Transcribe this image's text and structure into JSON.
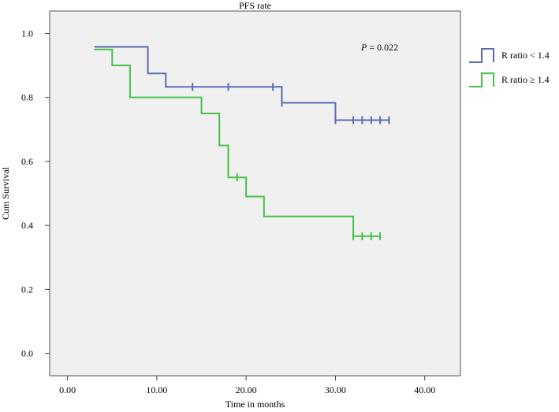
{
  "chart_data": {
    "type": "line",
    "subtype": "kaplan-meier step",
    "title": "PFS rate",
    "xlabel": "Time in months",
    "ylabel": "Cum Survival",
    "xlim": [
      -2,
      44
    ],
    "ylim": [
      -0.07,
      1.07
    ],
    "x_ticks": [
      0,
      10,
      20,
      30,
      40
    ],
    "x_tick_labels": [
      "0.00",
      "10.00",
      "20.00",
      "30.00",
      "40.00"
    ],
    "y_ticks": [
      0.0,
      0.2,
      0.4,
      0.6,
      0.8,
      1.0
    ],
    "y_tick_labels": [
      "0.0",
      "0.2",
      "0.4",
      "0.6",
      "0.8",
      "1.0"
    ],
    "annotation": {
      "italic": "P",
      "text": " = 0.022"
    },
    "legend_position": "right, outside plot",
    "series": [
      {
        "name": "R ratio < 1.4",
        "color": "#5b6db3",
        "start_x": 3,
        "end_x": 36,
        "steps": [
          {
            "x": 3,
            "y": 0.958
          },
          {
            "x": 9,
            "y": 0.875
          },
          {
            "x": 11,
            "y": 0.833
          },
          {
            "x": 24,
            "y": 0.783
          },
          {
            "x": 30,
            "y": 0.729
          }
        ],
        "censored": [
          {
            "x": 14,
            "y": 0.833
          },
          {
            "x": 18,
            "y": 0.833
          },
          {
            "x": 23,
            "y": 0.833
          },
          {
            "x": 24,
            "y": 0.783
          },
          {
            "x": 30,
            "y": 0.729
          },
          {
            "x": 32,
            "y": 0.729
          },
          {
            "x": 33,
            "y": 0.729
          },
          {
            "x": 34,
            "y": 0.729
          },
          {
            "x": 35,
            "y": 0.729
          },
          {
            "x": 36,
            "y": 0.729
          }
        ]
      },
      {
        "name": "R ratio ≥ 1.4",
        "color": "#46c14a",
        "start_x": 3,
        "end_x": 35,
        "steps": [
          {
            "x": 3,
            "y": 0.95
          },
          {
            "x": 5,
            "y": 0.9
          },
          {
            "x": 7,
            "y": 0.8
          },
          {
            "x": 15,
            "y": 0.75
          },
          {
            "x": 17,
            "y": 0.65
          },
          {
            "x": 18,
            "y": 0.55
          },
          {
            "x": 20,
            "y": 0.49
          },
          {
            "x": 22,
            "y": 0.428
          },
          {
            "x": 32,
            "y": 0.366
          }
        ],
        "censored": [
          {
            "x": 19,
            "y": 0.55
          },
          {
            "x": 32,
            "y": 0.366
          },
          {
            "x": 33,
            "y": 0.366
          },
          {
            "x": 34,
            "y": 0.366
          },
          {
            "x": 35,
            "y": 0.366
          }
        ]
      }
    ]
  }
}
